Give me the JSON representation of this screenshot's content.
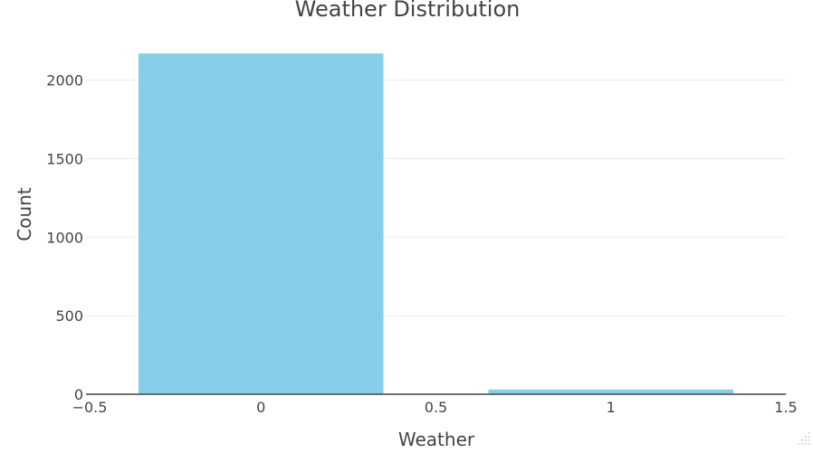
{
  "chart_data": {
    "type": "bar",
    "title": "Weather Distribution",
    "xlabel": "Weather",
    "ylabel": "Count",
    "x": [
      0,
      1
    ],
    "values": [
      2170,
      30
    ],
    "bar_width": 0.7,
    "xlim": [
      -0.5,
      1.5
    ],
    "ylim": [
      0,
      2280
    ],
    "x_ticks": [
      -0.5,
      0,
      0.5,
      1,
      1.5
    ],
    "x_tick_labels": [
      "−0.5",
      "0",
      "0.5",
      "1",
      "1.5"
    ],
    "y_ticks": [
      0,
      500,
      1000,
      1500,
      2000
    ],
    "y_tick_labels": [
      "0",
      "500",
      "1000",
      "1500",
      "2000"
    ],
    "bar_color": "#87CEEB",
    "grid": true,
    "grid_color": "#EBEBEB",
    "axis_line_color": "#444444",
    "text_color": "#444444",
    "legend": "none"
  }
}
